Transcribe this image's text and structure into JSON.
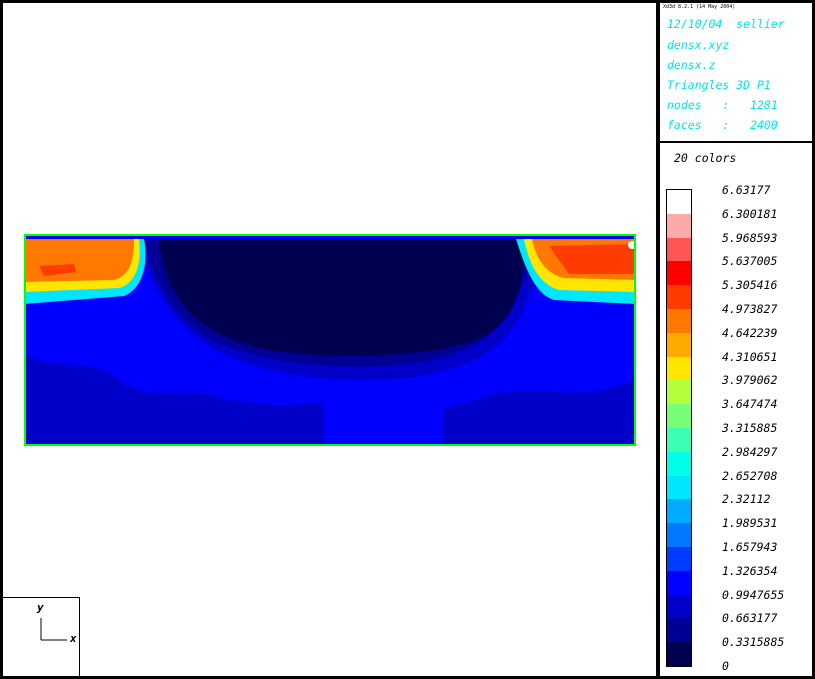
{
  "info": {
    "version": "Xd3d 8.2.1 (14 May 2004)",
    "lines": [
      "12/10/04  sellier",
      "densx.xyz",
      "densx.z",
      "Triangles 3D P1",
      "nodes   :   1281",
      "faces   :   2400"
    ]
  },
  "legend": {
    "colors_label": "20 colors",
    "ticks": [
      "6.63177",
      "6.300181",
      "5.968593",
      "5.637005",
      "5.305416",
      "4.973827",
      "4.642239",
      "4.310651",
      "3.979062",
      "3.647474",
      "3.315885",
      "2.984297",
      "2.652708",
      "2.32112",
      "1.989531",
      "1.657943",
      "1.326354",
      "0.9947655",
      "0.663177",
      "0.3315885",
      "0"
    ],
    "colors_top_to_bottom": [
      "#ffffff",
      "#ffaaaa",
      "#ff5555",
      "#ff0000",
      "#ff3c00",
      "#ff7800",
      "#ffaa00",
      "#ffe600",
      "#b4ff3c",
      "#78ff78",
      "#3cffb4",
      "#00ffe6",
      "#00e6ff",
      "#00aaff",
      "#0078ff",
      "#003cff",
      "#0000ff",
      "#0000c8",
      "#000096",
      "#000050"
    ]
  },
  "axes": {
    "y_label": "y",
    "x_label": "x"
  },
  "colors": {
    "accent": "#00e5e5",
    "mesh_border": "#00ff00"
  }
}
